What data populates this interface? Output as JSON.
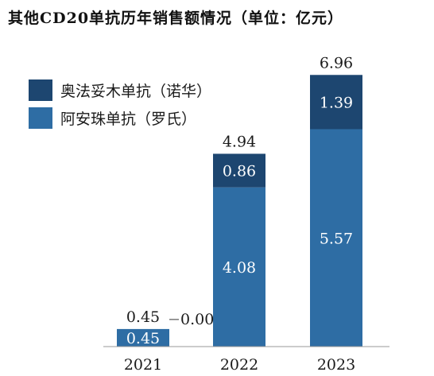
{
  "chart_data": {
    "type": "bar",
    "stacked": true,
    "title": "其他CD20单抗历年销售额情况（单位：亿元）",
    "categories": [
      "2021",
      "2022",
      "2023"
    ],
    "series": [
      {
        "name": "阿安珠单抗（罗氏）",
        "values": [
          0.45,
          4.08,
          5.57
        ],
        "color": "#2e6da4"
      },
      {
        "name": "奥法妥木单抗（诺华）",
        "values": [
          0.0,
          0.86,
          1.39
        ],
        "color": "#1d4670"
      }
    ],
    "totals": [
      0.45,
      4.94,
      6.96
    ],
    "segment_labels": [
      [
        "0.45",
        "4.08",
        "5.57"
      ],
      [
        "0.00",
        "0.86",
        "1.39"
      ]
    ],
    "total_labels": [
      "0.45",
      "4.94",
      "6.96"
    ],
    "legend": [
      "奥法妥木单抗（诺华）",
      "阿安珠单抗（罗氏）"
    ],
    "ylim": [
      0,
      7.5
    ],
    "grid": false,
    "legend_position": "top-left",
    "xlabel": "",
    "ylabel": ""
  }
}
